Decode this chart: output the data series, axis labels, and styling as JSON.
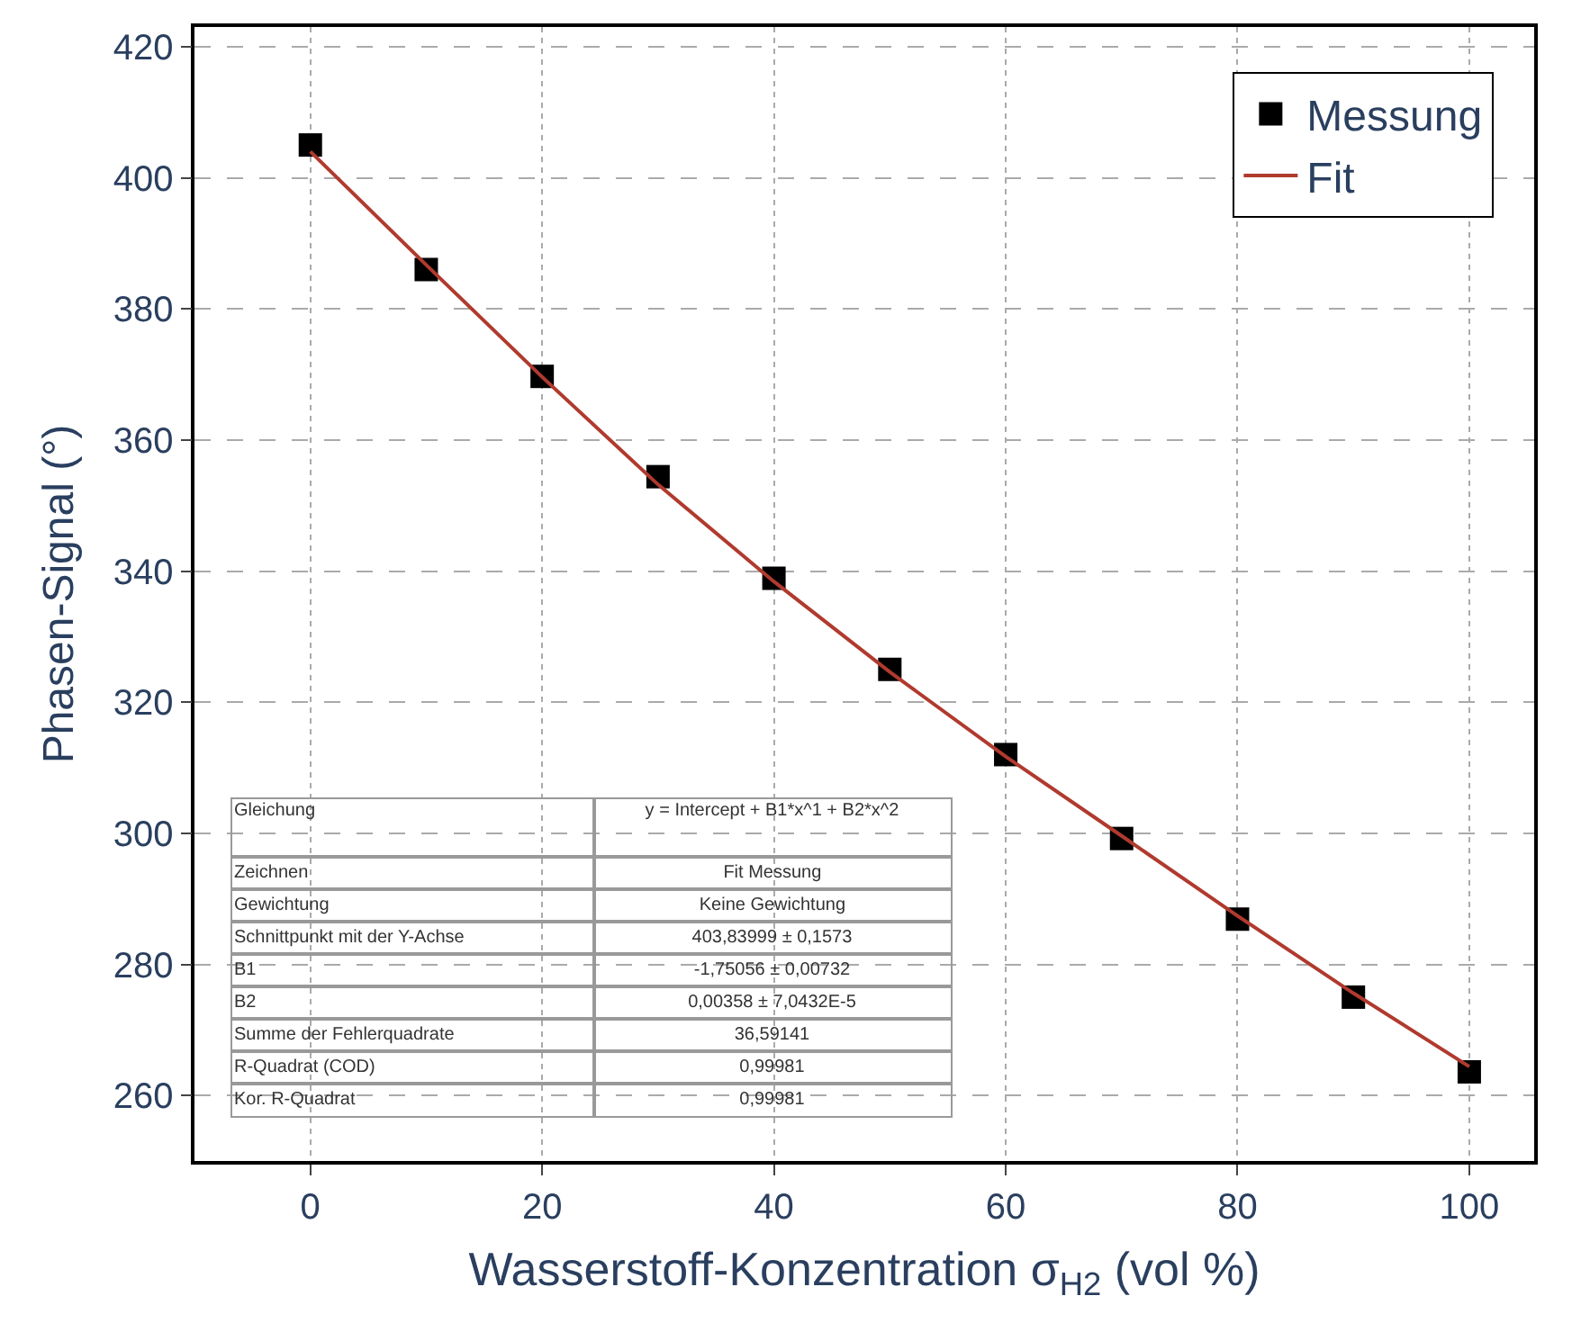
{
  "chart_data": {
    "type": "scatter",
    "xlabel": "Wasserstoff-Konzentration σ$_{H2}$ (vol %)",
    "ylabel": "Phasen-Signal (°)",
    "x": [
      0,
      10,
      20,
      30,
      40,
      50,
      60,
      70,
      80,
      90,
      100
    ],
    "series": [
      {
        "name": "Messung",
        "color": "#000000",
        "marker": "square",
        "values": [
          405,
          386,
          369.7,
          354.4,
          338.9,
          325,
          312,
          299.2,
          286.9,
          275,
          263.6
        ]
      },
      {
        "name": "Fit",
        "type": "line",
        "color": "#b03a2e",
        "marker": "none",
        "line_style": "solid",
        "values": [
          404,
          386.7,
          369.6,
          353.2,
          338.4,
          324.6,
          311.7,
          299.6,
          287.4,
          275.6,
          264.4
        ]
      }
    ],
    "xlim": [
      -10,
      105.6
    ],
    "xticks": [
      0,
      20,
      40,
      60,
      80,
      100
    ],
    "ylim": [
      250,
      423
    ],
    "yticks": [
      260,
      280,
      300,
      320,
      340,
      360,
      380,
      400,
      420
    ],
    "grid": true,
    "legend": "top right",
    "annotations": [
      "Gleichung",
      "y = Intercept + B1*x^1 + B2*x^2",
      "Zeichnen",
      "Fit Messung",
      "Gewichtung",
      "Keine Gewichtung",
      "Schnittpunkt mit der Y-Achse",
      "403,83999 ± 0,1573",
      "B1",
      "-1,75056 ± 0,00732",
      "B2",
      "0,00358 ± 7,0432E-5",
      "Summe der Fehlerquadrate",
      "36,59141",
      "R-Quadrat (COD)",
      "0,99981",
      "Kor. R-Quadrat",
      "0,99981"
    ]
  }
}
